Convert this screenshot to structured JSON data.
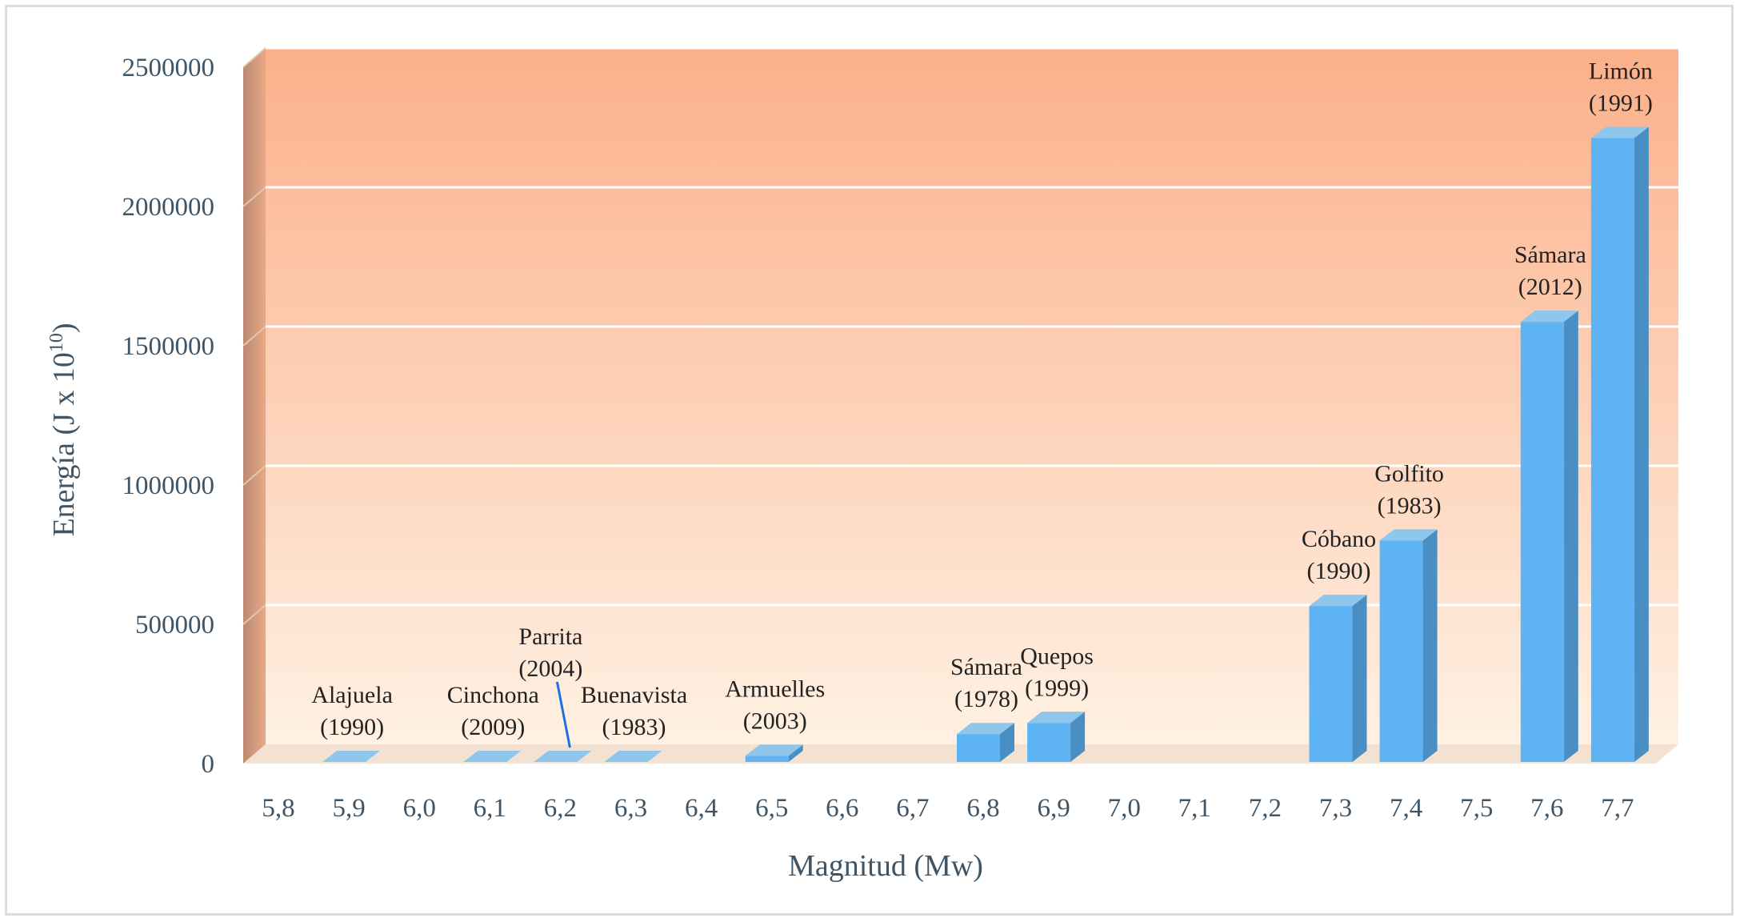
{
  "chart_data": {
    "type": "bar",
    "xlabel": "Magnitud (Mw)",
    "ylabel_main": "Energía (J x 10",
    "ylabel_sup": "10",
    "ylabel_close": ")",
    "ylim": [
      0,
      2500000
    ],
    "yticks": [
      "0",
      "500000",
      "1000000",
      "1500000",
      "2000000",
      "2500000"
    ],
    "ytick_values": [
      0,
      500000,
      1000000,
      1500000,
      2000000,
      2500000
    ],
    "categories": [
      "5,8",
      "5,9",
      "6,0",
      "6,1",
      "6,2",
      "6,3",
      "6,4",
      "6,5",
      "6,6",
      "6,7",
      "6,8",
      "6,9",
      "7,0",
      "7,1",
      "7,2",
      "7,3",
      "7,4",
      "7,5",
      "7,6",
      "7,7"
    ],
    "grid": true,
    "bars": [
      {
        "category": "5,9",
        "value": 0,
        "label": [
          "Alajuela",
          "(1990)"
        ]
      },
      {
        "category": "6,1",
        "value": 0,
        "label": [
          "Cinchona",
          "(2009)"
        ]
      },
      {
        "category": "6,2",
        "value": 0,
        "label": [
          "Parrita",
          "(2004)"
        ],
        "leader": true
      },
      {
        "category": "6,3",
        "value": 0,
        "label": [
          "Buenavista",
          "(1983)"
        ]
      },
      {
        "category": "6,5",
        "value": 22000,
        "label": [
          "Armuelles",
          "(2003)"
        ]
      },
      {
        "category": "6,8",
        "value": 100000,
        "label": [
          "Sámara",
          "(1978)"
        ]
      },
      {
        "category": "6,9",
        "value": 140000,
        "label": [
          "Quepos",
          "(1999)"
        ]
      },
      {
        "category": "7,3",
        "value": 560000,
        "label": [
          "Cóbano",
          "(1990)"
        ]
      },
      {
        "category": "7,4",
        "value": 795000,
        "label": [
          "Golfito",
          "(1983)"
        ]
      },
      {
        "category": "7,6",
        "value": 1580000,
        "label": [
          "Sámara",
          "(2012)"
        ]
      },
      {
        "category": "7,7",
        "value": 2240000,
        "label": [
          "Limón",
          "(1991)"
        ]
      }
    ],
    "colors": {
      "bar_front": "#5eb3f5",
      "bar_top": "#8fc6ec",
      "bar_side": "#4a8fc4",
      "background_top": "#fbb08a",
      "background_bottom": "#fff1e3",
      "left_wall": "#c88d6f",
      "floor": "#f3e2d2",
      "grid": "#ffffff",
      "text": "#3f5566",
      "leader": "#1f6fe0"
    }
  }
}
